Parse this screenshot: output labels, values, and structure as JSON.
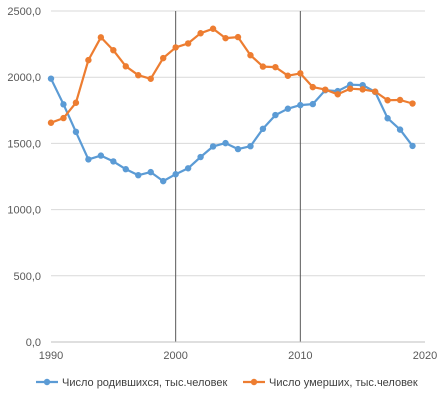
{
  "chart_data": {
    "type": "line",
    "title": "",
    "xlabel": "",
    "ylabel": "",
    "xlim": [
      1990,
      2020
    ],
    "ylim": [
      0,
      2500
    ],
    "x_ticks": [
      1990,
      2000,
      2010,
      2020
    ],
    "x_tick_labels": [
      "1990",
      "2000",
      "2010",
      "2020"
    ],
    "y_ticks": [
      0,
      500,
      1000,
      1500,
      2000,
      2500
    ],
    "y_tick_labels": [
      "0,0",
      "500,0",
      "1000,0",
      "1500,0",
      "2000,0",
      "2500,0"
    ],
    "vertical_reference_lines": [
      2000,
      2010
    ],
    "grid": "horizontal",
    "legend_position": "bottom",
    "x": [
      1990,
      1991,
      1992,
      1993,
      1994,
      1995,
      1996,
      1997,
      1998,
      1999,
      2000,
      2001,
      2002,
      2003,
      2004,
      2005,
      2006,
      2007,
      2008,
      2009,
      2010,
      2011,
      2012,
      2013,
      2014,
      2015,
      2016,
      2017,
      2018,
      2019
    ],
    "series": [
      {
        "name": "Число родившихся, тыс.человек",
        "color": "#5B9BD5",
        "values": [
          1989,
          1795,
          1587,
          1379,
          1408,
          1364,
          1305,
          1260,
          1283,
          1215,
          1267,
          1312,
          1397,
          1477,
          1502,
          1457,
          1479,
          1610,
          1714,
          1762,
          1789,
          1797,
          1902,
          1895,
          1943,
          1940,
          1889,
          1690,
          1604,
          1481
        ]
      },
      {
        "name": "Число умерших, тыс.человек",
        "color": "#ED7D31",
        "values": [
          1656,
          1691,
          1807,
          2129,
          2301,
          2204,
          2082,
          2015,
          1988,
          2144,
          2225,
          2255,
          2332,
          2366,
          2295,
          2303,
          2166,
          2080,
          2076,
          2011,
          2029,
          1925,
          1906,
          1871,
          1913,
          1908,
          1891,
          1826,
          1828,
          1801
        ]
      }
    ]
  }
}
